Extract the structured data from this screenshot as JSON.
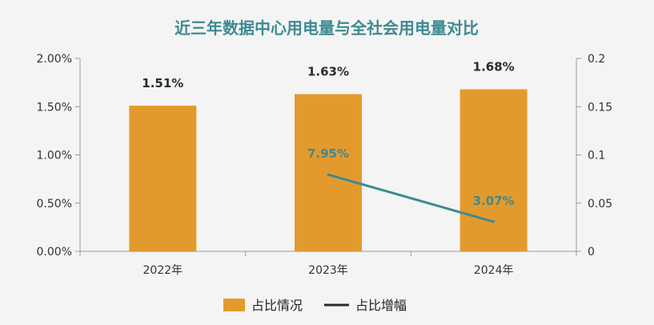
{
  "chart_data": {
    "type": "bar",
    "title": "近三年数据中心用电量与全社会用电量对比",
    "categories": [
      "2022年",
      "2023年",
      "2024年"
    ],
    "series": [
      {
        "name": "占比情况",
        "type": "bar",
        "axis": "left",
        "values": [
          1.51,
          1.63,
          1.68
        ],
        "labels": [
          "1.51%",
          "1.63%",
          "1.68%"
        ],
        "color": "#e39a2d"
      },
      {
        "name": "占比增幅",
        "type": "line",
        "axis": "right",
        "x": [
          "2023年",
          "2024年"
        ],
        "values": [
          0.0795,
          0.0307
        ],
        "labels": [
          "7.95%",
          "3.07%"
        ],
        "color": "#3e8a91"
      }
    ],
    "y_left": {
      "range": [
        0,
        2
      ],
      "ticks": [
        "0.00%",
        "0.50%",
        "1.00%",
        "1.50%",
        "2.00%"
      ]
    },
    "y_right": {
      "range": [
        0,
        0.2
      ],
      "ticks": [
        "0",
        "0.05",
        "0.1",
        "0.15",
        "0.2"
      ]
    },
    "grid": false,
    "legend": "bottom"
  }
}
